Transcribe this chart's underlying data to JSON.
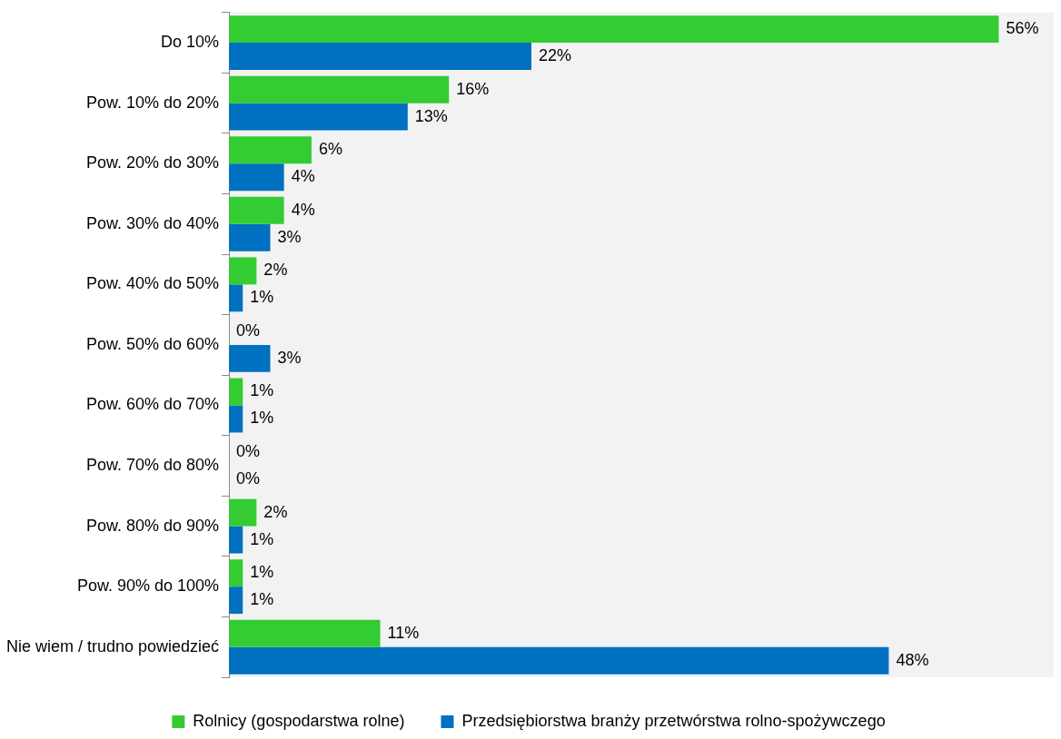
{
  "chart_data": {
    "type": "bar",
    "orientation": "horizontal",
    "legend": "bottom",
    "grid": false,
    "tick_labels": "y",
    "categories": [
      "Do 10%",
      "Pow. 10% do 20%",
      "Pow. 20% do 30%",
      "Pow. 30% do 40%",
      "Pow. 40% do 50%",
      "Pow. 50% do 60%",
      "Pow. 60% do 70%",
      "Pow. 70% do 80%",
      "Pow. 80% do 90%",
      "Pow. 90% do 100%",
      "Nie wiem / trudno powiedzieć"
    ],
    "series": [
      {
        "name": "Rolnicy (gospodarstwa rolne)",
        "color": "#33cc33",
        "values": [
          56,
          16,
          6,
          4,
          2,
          0,
          1,
          0,
          2,
          1,
          11
        ],
        "value_labels": [
          "56%",
          "16%",
          "6%",
          "4%",
          "2%",
          "0%",
          "1%",
          "0%",
          "2%",
          "1%",
          "11%"
        ]
      },
      {
        "name": "Przedsiębiorstwa branży przetwórstwa rolno-spożywczego",
        "color": "#0070c0",
        "values": [
          22,
          13,
          4,
          3,
          1,
          3,
          1,
          0,
          1,
          1,
          48
        ],
        "value_labels": [
          "22%",
          "13%",
          "4%",
          "3%",
          "1%",
          "3%",
          "1%",
          "0%",
          "1%",
          "1%",
          "48%"
        ]
      }
    ]
  }
}
